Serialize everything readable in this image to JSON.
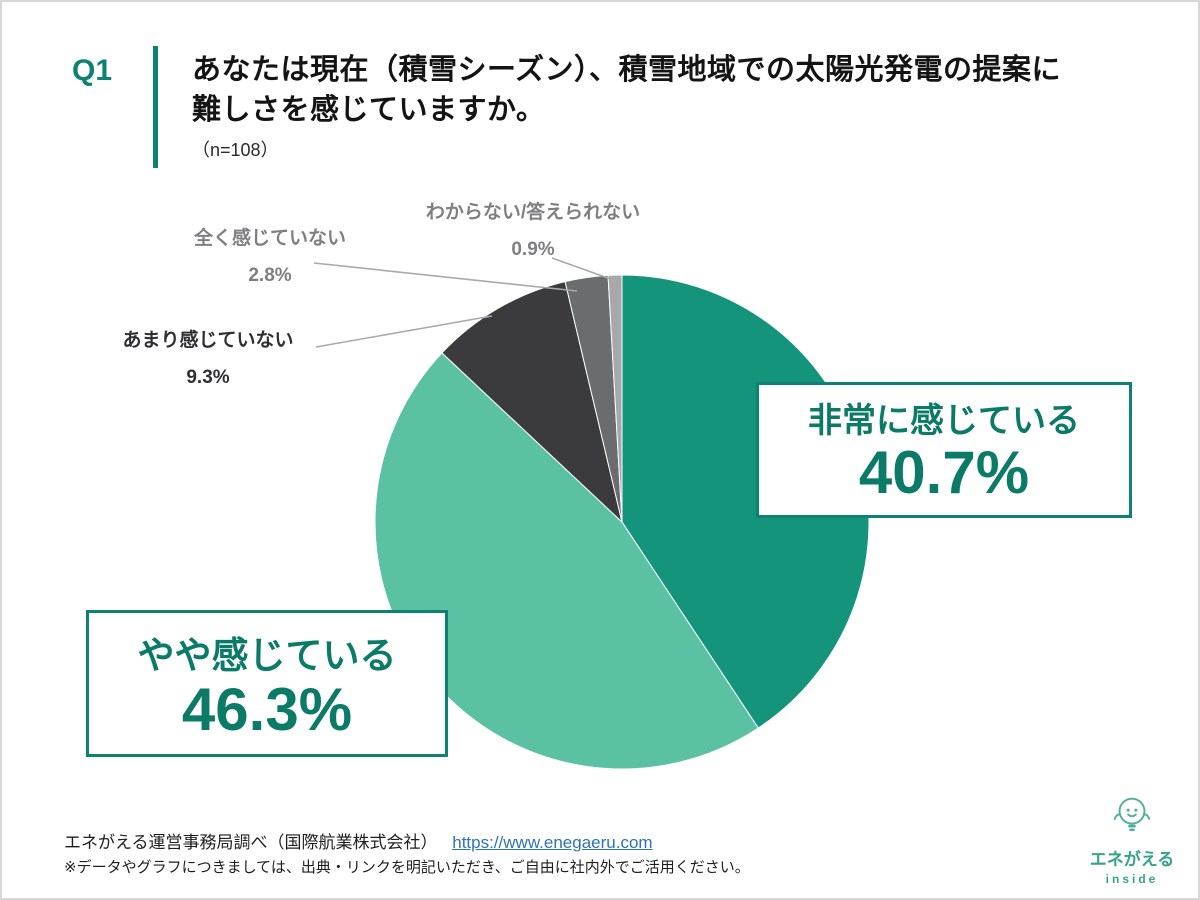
{
  "header": {
    "q_label": "Q1",
    "title_line1": "あなたは現在（積雪シーズン）、積雪地域での太陽光発電の提案に",
    "title_line2": "難しさを感じていますか。",
    "sample": "（n=108）"
  },
  "chart_data": {
    "type": "pie",
    "title": "積雪地域での太陽光発電の提案に難しさを感じていますか",
    "sample_size": 108,
    "start_angle_deg": 0,
    "direction": "clockwise",
    "segments": [
      {
        "label": "非常に感じている",
        "value": 40.7,
        "display": "40.7%",
        "color": "#15947c"
      },
      {
        "label": "やや感じている",
        "value": 46.3,
        "display": "46.3%",
        "color": "#5ac2a3"
      },
      {
        "label": "あまり感じていない",
        "value": 9.3,
        "display": "9.3%",
        "color": "#3b3b3f"
      },
      {
        "label": "全く感じていない",
        "value": 2.8,
        "display": "2.8%",
        "color": "#6b6c6e"
      },
      {
        "label": "わからない/答えられない",
        "value": 0.9,
        "display": "0.9%",
        "color": "#a8a8aa"
      }
    ]
  },
  "footer": {
    "source": "エネがえる運営事務局調べ（国際航業株式会社）",
    "url": "https://www.enegaeru.com",
    "note": "※データやグラフにつきましては、出典・リンクを明記いただき、ご自由に社内外でご活用ください。"
  },
  "logo": {
    "name": "エネがえる",
    "sub": "inside"
  },
  "colors": {
    "accent_teal": "#0e8270",
    "link_blue": "#2e74b5"
  }
}
